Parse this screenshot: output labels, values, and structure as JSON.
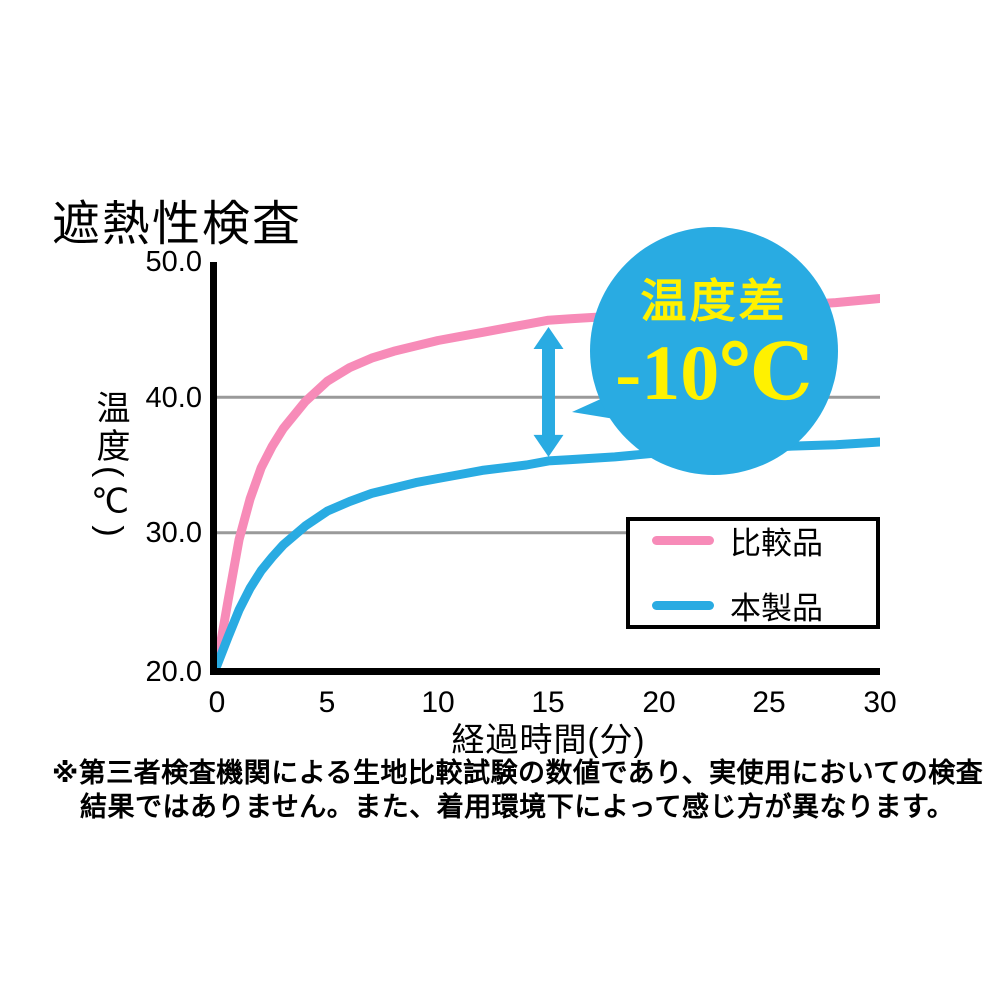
{
  "title": "遮熱性検査",
  "colors": {
    "pink": "#f78bb8",
    "blue": "#29abe2",
    "grid": "#9a9a9a",
    "axis": "#000000",
    "badge_bg": "#29abe2",
    "badge_text": "#fff100"
  },
  "badge": {
    "label": "温度差",
    "value": "-10℃",
    "bg_color": "#29abe2",
    "text_color": "#fff100"
  },
  "legend": {
    "items": [
      {
        "label": "比較品",
        "color": "#f78bb8"
      },
      {
        "label": "本製品",
        "color": "#29abe2"
      }
    ]
  },
  "footnote": {
    "line1": "※第三者検査機関による生地比較試験の数値であり、実使用においての検査",
    "line2": "結果ではありません。また、着用環境下によって感じ方が異なります。"
  },
  "chart_data": {
    "type": "line",
    "title": "遮熱性検査",
    "xlabel": "経過時間(分)",
    "ylabel": "温度(℃)",
    "xlim": [
      0,
      30
    ],
    "ylim": [
      20,
      50
    ],
    "x_ticks": [
      "0",
      "5",
      "10",
      "15",
      "20",
      "25",
      "30"
    ],
    "y_tick_labels": [
      "50.0",
      "40.0",
      "30.0",
      "20.0"
    ],
    "grid_y": [
      30,
      40
    ],
    "legend_position": "lower right",
    "series": [
      {
        "name": "比較品",
        "color": "#f78bb8",
        "x": [
          0,
          0.5,
          1,
          1.5,
          2,
          2.5,
          3,
          4,
          5,
          6,
          7,
          8,
          9,
          10,
          11,
          12,
          13,
          14,
          15,
          16,
          18,
          20,
          22,
          24,
          26,
          28,
          30
        ],
        "values": [
          20.3,
          25.0,
          29.5,
          32.5,
          34.8,
          36.4,
          37.7,
          39.7,
          41.2,
          42.2,
          42.9,
          43.4,
          43.8,
          44.2,
          44.5,
          44.8,
          45.1,
          45.4,
          45.7,
          45.8,
          46.0,
          46.2,
          46.4,
          46.6,
          46.8,
          47.0,
          47.3
        ]
      },
      {
        "name": "本製品",
        "color": "#29abe2",
        "x": [
          0,
          0.5,
          1,
          1.5,
          2,
          2.5,
          3,
          4,
          5,
          6,
          7,
          8,
          9,
          10,
          11,
          12,
          13,
          14,
          15,
          16,
          18,
          20,
          22,
          24,
          26,
          28,
          30
        ],
        "values": [
          20.2,
          22.3,
          24.3,
          25.9,
          27.2,
          28.2,
          29.1,
          30.5,
          31.6,
          32.3,
          32.9,
          33.3,
          33.7,
          34.0,
          34.3,
          34.6,
          34.8,
          35.0,
          35.3,
          35.4,
          35.6,
          35.9,
          36.1,
          36.2,
          36.4,
          36.5,
          36.7
        ]
      }
    ],
    "annotation": {
      "x": 15,
      "from": 45.2,
      "to": 35.6,
      "label": "温度差 -10℃"
    }
  }
}
